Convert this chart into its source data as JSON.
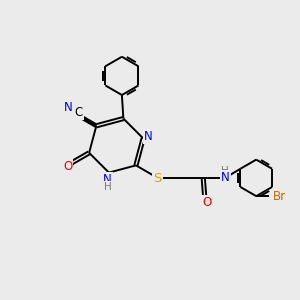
{
  "bg_color": "#ebebeb",
  "bond_color": "#000000",
  "atom_colors": {
    "N": "#0000ff",
    "O": "#ff0000",
    "S": "#ccaa00",
    "Br": "#cc6600",
    "C": "#000000",
    "H": "#777777"
  },
  "figsize": [
    3.0,
    3.0
  ],
  "dpi": 100
}
